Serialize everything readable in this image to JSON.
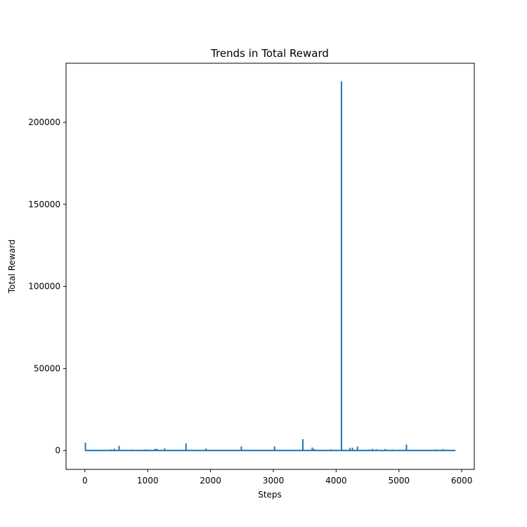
{
  "chart_data": {
    "type": "line",
    "title": "Trends in Total Reward",
    "xlabel": "Steps",
    "ylabel": "Total Reward",
    "xlim": [
      -300,
      6200
    ],
    "ylim": [
      -11500,
      236000
    ],
    "xticks": [
      0,
      1000,
      2000,
      3000,
      4000,
      5000,
      6000
    ],
    "yticks": [
      0,
      50000,
      100000,
      150000,
      200000
    ],
    "grid": false,
    "legend": "none",
    "series_color": "#1f77b4",
    "baseline": {
      "x_start": 0,
      "x_end": 5900,
      "y": 0
    },
    "spikes": [
      {
        "x": 8,
        "y": 4800
      },
      {
        "x": 300,
        "y": 500
      },
      {
        "x": 420,
        "y": 700
      },
      {
        "x": 470,
        "y": 1100
      },
      {
        "x": 545,
        "y": 2800
      },
      {
        "x": 640,
        "y": 500
      },
      {
        "x": 760,
        "y": 600
      },
      {
        "x": 820,
        "y": 400
      },
      {
        "x": 960,
        "y": 700
      },
      {
        "x": 1000,
        "y": 500
      },
      {
        "x": 1120,
        "y": 1100
      },
      {
        "x": 1150,
        "y": 1000
      },
      {
        "x": 1270,
        "y": 1300
      },
      {
        "x": 1610,
        "y": 4300
      },
      {
        "x": 1930,
        "y": 1200
      },
      {
        "x": 2200,
        "y": 400
      },
      {
        "x": 2490,
        "y": 2500
      },
      {
        "x": 2640,
        "y": 500
      },
      {
        "x": 2740,
        "y": 400
      },
      {
        "x": 3020,
        "y": 2500
      },
      {
        "x": 3160,
        "y": 400
      },
      {
        "x": 3470,
        "y": 6900
      },
      {
        "x": 3620,
        "y": 1800
      },
      {
        "x": 3650,
        "y": 1000
      },
      {
        "x": 3920,
        "y": 700
      },
      {
        "x": 4085,
        "y": 225000
      },
      {
        "x": 4130,
        "y": 500
      },
      {
        "x": 4220,
        "y": 1600
      },
      {
        "x": 4260,
        "y": 1700
      },
      {
        "x": 4340,
        "y": 2400
      },
      {
        "x": 4520,
        "y": 600
      },
      {
        "x": 4580,
        "y": 1000
      },
      {
        "x": 4640,
        "y": 800
      },
      {
        "x": 4780,
        "y": 900
      },
      {
        "x": 4900,
        "y": 600
      },
      {
        "x": 5000,
        "y": 500
      },
      {
        "x": 5120,
        "y": 3600
      },
      {
        "x": 5320,
        "y": 400
      },
      {
        "x": 5590,
        "y": 700
      },
      {
        "x": 5700,
        "y": 900
      }
    ]
  }
}
